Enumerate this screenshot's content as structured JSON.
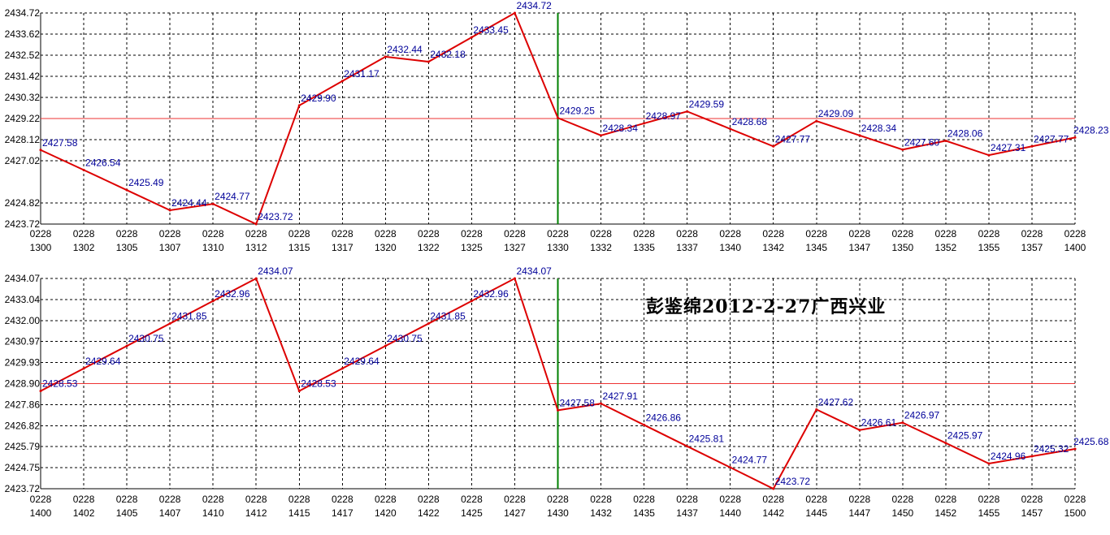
{
  "annotation": "彭鉴绵2012-2-27广西兴业",
  "colors": {
    "line": "#dd0000",
    "reference_line": "#ee3333",
    "marker_line": "#008000",
    "value_label": "#000099",
    "grid": "#000000",
    "text": "#000000"
  },
  "chart_data": [
    {
      "type": "line",
      "x": [
        "0228 1300",
        "0228 1302",
        "0228 1305",
        "0228 1307",
        "0228 1310",
        "0228 1312",
        "0228 1315",
        "0228 1317",
        "0228 1320",
        "0228 1322",
        "0228 1325",
        "0228 1327",
        "0228 1330",
        "0228 1332",
        "0228 1335",
        "0228 1337",
        "0228 1340",
        "0228 1342",
        "0228 1345",
        "0228 1347",
        "0228 1350",
        "0228 1352",
        "0228 1355",
        "0228 1357",
        "0228 1400"
      ],
      "yticks": [
        "2434.72",
        "2433.62",
        "2432.52",
        "2431.42",
        "2430.32",
        "2429.22",
        "2428.12",
        "2427.02",
        "2424.82",
        "2423.72"
      ],
      "ylim": [
        2423.72,
        2434.72
      ],
      "reference_value": 2429.22,
      "marker_index": 12,
      "series": [
        {
          "values": [
            2427.58,
            2426.54,
            2425.49,
            2424.44,
            2424.77,
            2423.72,
            2429.9,
            2431.17,
            2432.44,
            2432.18,
            2433.45,
            2434.72,
            2429.25,
            2428.34,
            2428.97,
            2429.59,
            2428.68,
            2427.77,
            2429.09,
            2428.34,
            2427.6,
            2428.06,
            2427.31,
            2427.77,
            2428.23
          ],
          "labels": [
            "2427.58",
            "2426.54",
            "2425.49",
            "2424.44",
            "2424.77",
            "2423.72",
            "2429.90",
            "2431.17",
            "2432.44",
            "2432.18",
            "2433.45",
            "2434.72",
            "2429.25",
            "2428.34",
            "2428.97",
            "2429.59",
            "2428.68",
            "2427.77",
            "2429.09",
            "2428.34",
            "2427.60",
            "2428.06",
            "2427.31",
            "2427.77",
            "2428.23"
          ]
        }
      ],
      "grid": true
    },
    {
      "type": "line",
      "x": [
        "0228 1400",
        "0228 1402",
        "0228 1405",
        "0228 1407",
        "0228 1410",
        "0228 1412",
        "0228 1415",
        "0228 1417",
        "0228 1420",
        "0228 1422",
        "0228 1425",
        "0228 1427",
        "0228 1430",
        "0228 1432",
        "0228 1435",
        "0228 1437",
        "0228 1440",
        "0228 1442",
        "0228 1445",
        "0228 1447",
        "0228 1450",
        "0228 1452",
        "0228 1455",
        "0228 1457",
        "0228 1500"
      ],
      "yticks": [
        "2434.07",
        "2433.04",
        "2432.00",
        "2430.97",
        "2429.93",
        "2428.90",
        "2427.86",
        "2426.82",
        "2425.79",
        "2424.75",
        "2423.72"
      ],
      "ylim": [
        2423.72,
        2434.07
      ],
      "reference_value": 2428.9,
      "marker_index": 12,
      "series": [
        {
          "values": [
            2428.53,
            2429.64,
            2430.75,
            2431.85,
            2432.96,
            2434.07,
            2428.53,
            2429.64,
            2430.75,
            2431.85,
            2432.96,
            2434.07,
            2427.58,
            2427.91,
            2426.86,
            2425.81,
            2424.77,
            2423.72,
            2427.62,
            2426.61,
            2426.97,
            2425.97,
            2424.96,
            2425.32,
            2425.68
          ],
          "labels": [
            "2428.53",
            "2429.64",
            "2430.75",
            "2431.85",
            "2432.96",
            "2434.07",
            "2428.53",
            "2429.64",
            "2430.75",
            "2431.85",
            "2432.96",
            "2434.07",
            "2427.58",
            "2427.91",
            "2426.86",
            "2425.81",
            "2424.77",
            "2423.72",
            "2427.62",
            "2426.61",
            "2426.97",
            "2425.97",
            "2424.96",
            "2425.32",
            "2425.68"
          ]
        }
      ],
      "grid": true
    }
  ]
}
